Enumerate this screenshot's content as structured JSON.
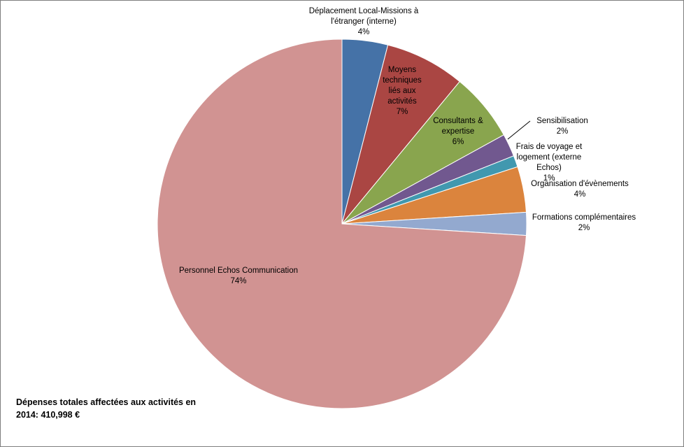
{
  "chart_data": {
    "type": "pie",
    "start_angle_deg": 0,
    "direction": "clockwise",
    "legend": "none",
    "slices": [
      {
        "label": "Déplacement Local-Missions à l'étranger (interne)",
        "label_lines": [
          "Déplacement Local-Missions à",
          "l'étranger (interne)"
        ],
        "value": 4,
        "value_label": "4%",
        "color": "#4572A7"
      },
      {
        "label": "Moyens techniques liés aux activités",
        "label_lines": [
          "Moyens",
          "techniques",
          "liés aux",
          "activités"
        ],
        "value": 7,
        "value_label": "7%",
        "color": "#AA4643"
      },
      {
        "label": "Consultants & expertise",
        "label_lines": [
          "Consultants &",
          "expertise"
        ],
        "value": 6,
        "value_label": "6%",
        "color": "#89A54E"
      },
      {
        "label": "Sensibilisation",
        "label_lines": [
          "Sensibilisation"
        ],
        "value": 2,
        "value_label": "2%",
        "color": "#71588F"
      },
      {
        "label": "Frais de voyage et logement (externe Echos)",
        "label_lines": [
          "Frais de voyage et",
          "logement  (externe",
          "Echos)"
        ],
        "value": 1,
        "value_label": "1%",
        "color": "#4198AF"
      },
      {
        "label": "Organisation d'évènements",
        "label_lines": [
          "Organisation d'évènements"
        ],
        "value": 4,
        "value_label": "4%",
        "color": "#DB843D"
      },
      {
        "label": "Formations complémentaires",
        "label_lines": [
          "Formations complémentaires"
        ],
        "value": 2,
        "value_label": "2%",
        "color": "#93A9CF"
      },
      {
        "label": "Personnel Echos Communication",
        "label_lines": [
          "Personnel Echos Communication"
        ],
        "value": 74,
        "value_label": "74%",
        "color": "#D19392"
      }
    ],
    "annotation": "Dépenses totales affectées aux activités en\n2014:  410,998  €"
  }
}
